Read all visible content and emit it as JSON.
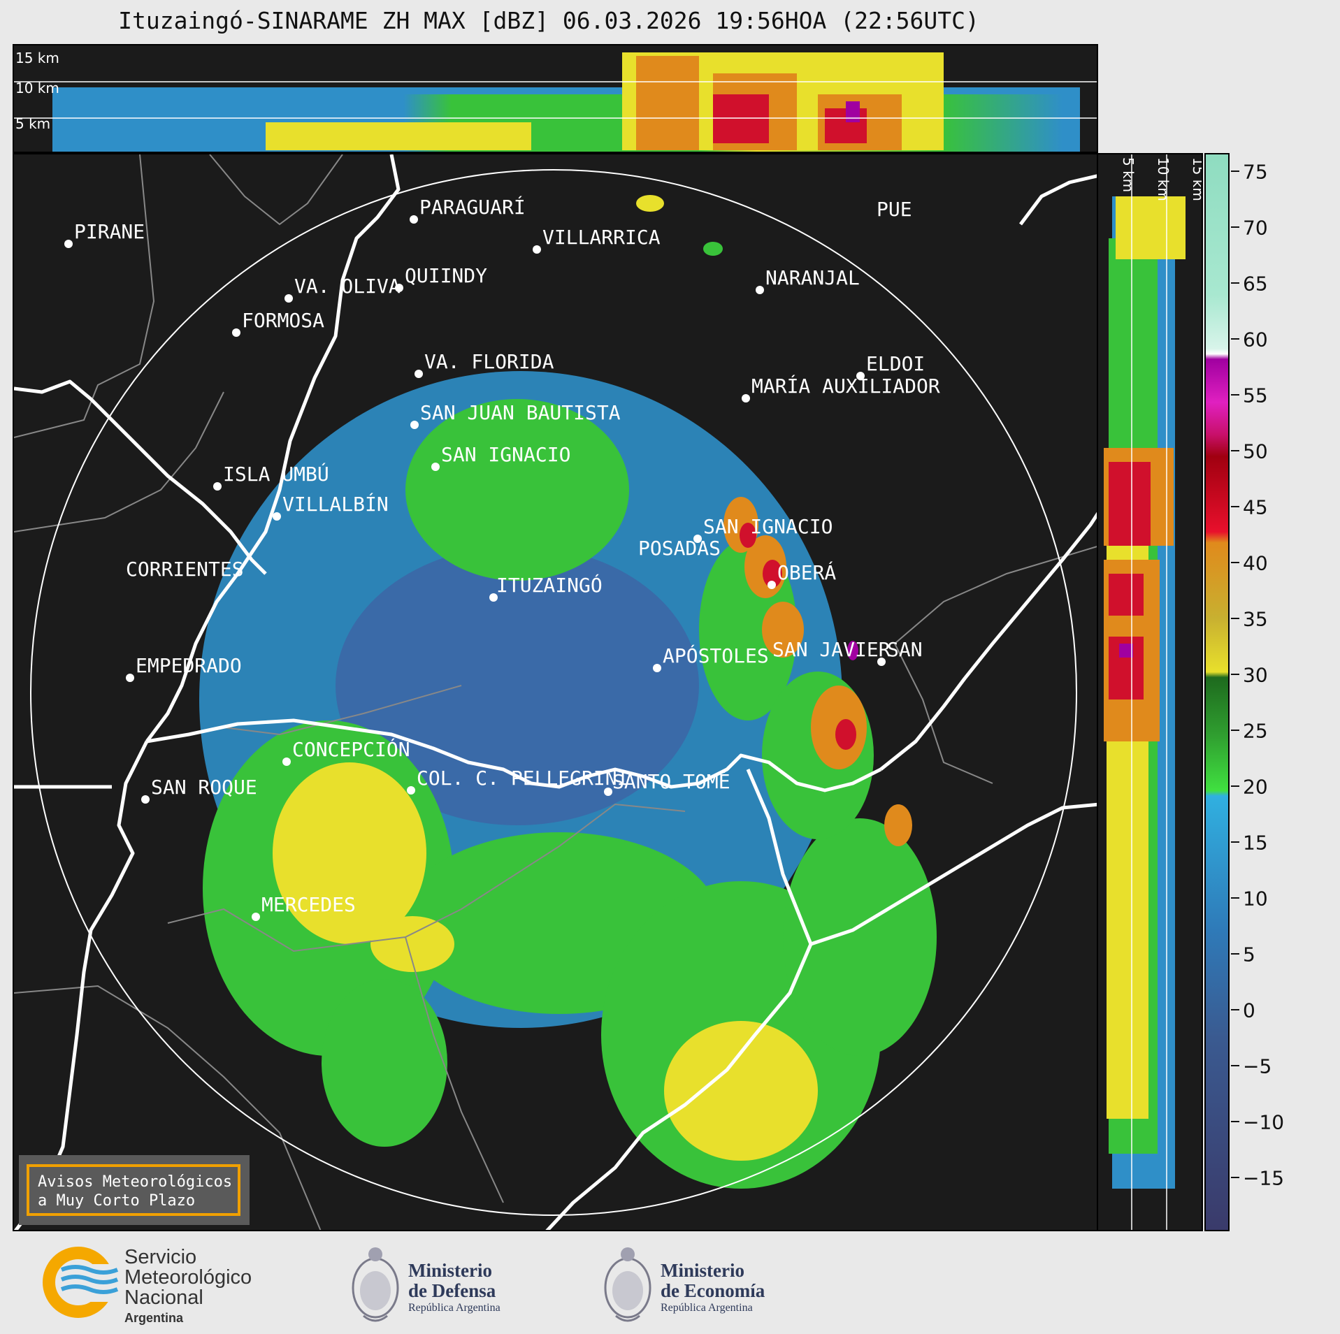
{
  "title": "Ituzaingó-SINARAME ZH MAX [dBZ] 06.03.2026 19:56HOA (22:56UTC)",
  "top_panel": {
    "altitude_labels": [
      "15 km",
      "10 km",
      "5 km"
    ]
  },
  "side_panel": {
    "altitude_labels": [
      "5 km",
      "10 km",
      "15 km"
    ]
  },
  "cities": [
    {
      "name": "PIRANE"
    },
    {
      "name": "PARAGUARÍ"
    },
    {
      "name": "VILLARRICA"
    },
    {
      "name": "PUE"
    },
    {
      "name": "QUIINDY"
    },
    {
      "name": "VA. OLIVA"
    },
    {
      "name": "NARANJAL"
    },
    {
      "name": "FORMOSA"
    },
    {
      "name": "VA. FLORIDA"
    },
    {
      "name": "ELDOI"
    },
    {
      "name": "MARÍA AUXILIADOR"
    },
    {
      "name": "SAN JUAN BAUTISTA"
    },
    {
      "name": "SAN IGNACIO"
    },
    {
      "name": "ISLA UMBÚ"
    },
    {
      "name": "VILLALBÍN"
    },
    {
      "name": "SAN IGNACIO"
    },
    {
      "name": "POSADAS"
    },
    {
      "name": "CORRIENTES"
    },
    {
      "name": "OBERÁ"
    },
    {
      "name": "ITUZAINGÓ"
    },
    {
      "name": "APÓSTOLES"
    },
    {
      "name": "SAN JAVIER"
    },
    {
      "name": "SAN"
    },
    {
      "name": "EMPEDRADO"
    },
    {
      "name": "CONCEPCIÓN"
    },
    {
      "name": "COL. C. PELLEGRINI"
    },
    {
      "name": "SANTO TOMÉ"
    },
    {
      "name": "SAN ROQUE"
    },
    {
      "name": "MERCEDES"
    }
  ],
  "colorbar": {
    "unit": "dBZ",
    "ticks": [
      "75",
      "70",
      "65",
      "60",
      "55",
      "50",
      "45",
      "40",
      "35",
      "30",
      "25",
      "20",
      "15",
      "10",
      "5",
      "0",
      "−5",
      "−10",
      "−15"
    ],
    "range": [
      -20,
      77
    ],
    "colors": {
      "below_0": "#3c3f6e",
      "0_to_18": "#2f8fc8",
      "18_to_30": "#39c23a",
      "30_to_40": "#e8e02c",
      "40_to_48": "#e08a1c",
      "48_to_58": "#d0102c",
      "58_to_60": "#a000a0",
      "60_to_70": "#e8f6f0",
      "70_to_77": "#8fdcc0"
    }
  },
  "notice": {
    "line1": "Avisos Meteorológicos",
    "line2": "a Muy Corto Plazo"
  },
  "footer": {
    "smn": {
      "line1": "Servicio",
      "line2": "Meteorológico",
      "line3": "Nacional",
      "country": "Argentina"
    },
    "defensa": {
      "line1": "Ministerio",
      "line2": "de Defensa",
      "sub": "República Argentina"
    },
    "economia": {
      "line1": "Ministerio",
      "line2": "de Economía",
      "sub": "República Argentina"
    }
  }
}
